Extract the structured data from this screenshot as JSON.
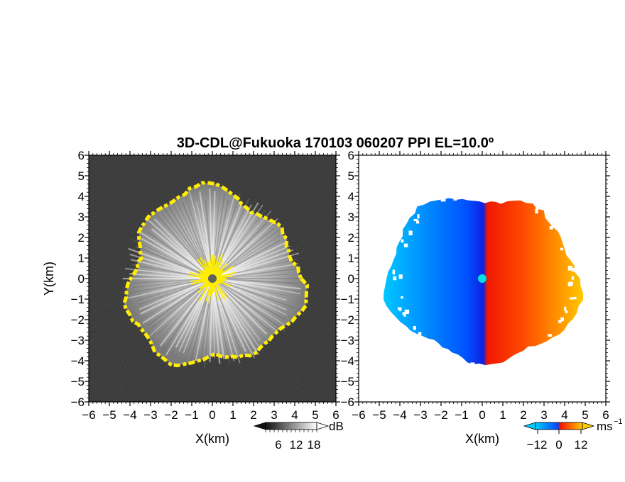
{
  "chart_data": [
    {
      "type": "heatmap",
      "panel": "left",
      "title": "3D-CDL@Fukuoka 170103 060207 PPI EL=10.0º",
      "xlabel": "X(km)",
      "ylabel": "Y(km)",
      "xlim": [
        -6,
        6
      ],
      "ylim": [
        -6,
        6
      ],
      "x_ticks": [
        "−6",
        "−5",
        "−4",
        "−3",
        "−2",
        "−1",
        "0",
        "1",
        "2",
        "3",
        "4",
        "5",
        "6"
      ],
      "y_ticks": [
        "−6",
        "−5",
        "−4",
        "−3",
        "−2",
        "−1",
        "0",
        "1",
        "2",
        "3",
        "4",
        "5",
        "6"
      ],
      "radar_center": [
        0,
        0
      ],
      "echo_radius_km": 4.4,
      "colorbar": {
        "unit": "dB",
        "tick_labels": [
          "6",
          "12",
          "18"
        ],
        "colors": [
          "#111111",
          "#5a5a5a",
          "#9a9a9a",
          "#d9d9d9",
          "#ffffff"
        ]
      },
      "overlay_color": "#ffee00",
      "background_color": "#1c1c1c"
    },
    {
      "type": "heatmap",
      "panel": "right",
      "xlabel": "X(km)",
      "xlim": [
        -6,
        6
      ],
      "ylim": [
        -6,
        6
      ],
      "x_ticks": [
        "−6",
        "−5",
        "−4",
        "−3",
        "−2",
        "−1",
        "0",
        "1",
        "2",
        "3",
        "4",
        "5",
        "6"
      ],
      "y_ticks": [
        "−6",
        "−5",
        "−4",
        "−3",
        "−2",
        "−1",
        "0",
        "1",
        "2",
        "3",
        "4",
        "5",
        "6"
      ],
      "radar_center": [
        0,
        0
      ],
      "colorbar": {
        "unit": "ms",
        "unit_exponent": "−1",
        "tick_labels": [
          "−12",
          "0",
          "12"
        ],
        "colors": [
          "#00ccff",
          "#0044ff",
          "#ee1100",
          "#ff6600",
          "#ffcc00"
        ]
      },
      "marker_color": "#00e0e0"
    }
  ]
}
